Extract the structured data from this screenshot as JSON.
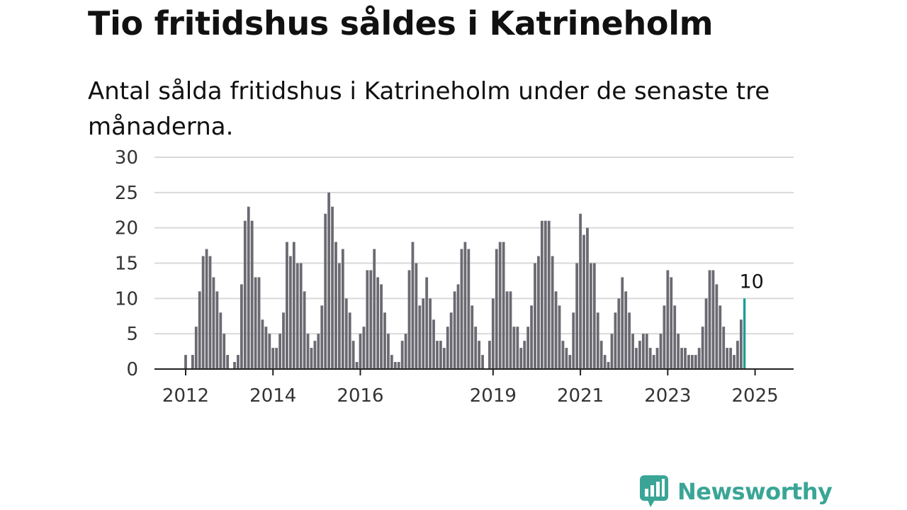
{
  "title": "Tio fritidshus såldes i Katrineholm",
  "subtitle": "Antal sålda fritidshus i Katrineholm under de senaste tre månaderna.",
  "colors": {
    "bar": "#6b6a72",
    "highlight": "#1a9e96",
    "grid": "#d9d9d9",
    "axis": "#222222",
    "brand": "#3aa597"
  },
  "brand": {
    "name": "Newsworthy",
    "icon": "bar-chart-speech-bubble-icon"
  },
  "chart_data": {
    "type": "bar",
    "title": "Tio fritidshus såldes i Katrineholm",
    "xlabel": "",
    "ylabel": "",
    "ylim": [
      0,
      30
    ],
    "yticks": [
      0,
      5,
      10,
      15,
      20,
      25,
      30
    ],
    "xtick_labels": [
      "2012",
      "2014",
      "2016",
      "2019",
      "2021",
      "2023",
      "2025"
    ],
    "xtick_positions": [
      0,
      25,
      50,
      88,
      113,
      138,
      163
    ],
    "grid": true,
    "legend": "none",
    "series": [
      {
        "values": [
          2,
          0,
          2,
          6,
          11,
          16,
          17,
          16,
          13,
          11,
          8,
          5,
          2,
          0,
          1,
          2,
          12,
          21,
          23,
          21,
          13,
          13,
          7,
          6,
          5,
          3,
          3,
          5,
          8,
          18,
          16,
          18,
          15,
          15,
          11,
          5,
          3,
          4,
          5,
          9,
          22,
          25,
          23,
          18,
          15,
          17,
          10,
          8,
          4,
          1,
          5,
          6,
          14,
          14,
          17,
          13,
          12,
          8,
          5,
          2,
          1,
          1,
          4,
          5,
          14,
          18,
          15,
          9,
          10,
          13,
          10,
          7,
          4,
          4,
          3,
          6,
          8,
          11,
          12,
          17,
          18,
          17,
          9,
          6,
          4,
          2,
          0,
          4,
          10,
          17,
          18,
          18,
          11,
          11,
          6,
          6,
          3,
          4,
          6,
          9,
          15,
          16,
          21,
          21,
          21,
          16,
          11,
          9,
          4,
          3,
          2,
          8,
          15,
          22,
          19,
          20,
          15,
          15,
          8,
          4,
          2,
          1,
          5,
          8,
          10,
          13,
          11,
          8,
          5,
          3,
          4,
          5,
          5,
          3,
          2,
          3,
          5,
          9,
          14,
          13,
          9,
          5,
          3,
          3,
          2,
          2,
          2,
          3,
          6,
          10,
          14,
          14,
          12,
          9,
          6,
          3,
          3,
          2,
          4,
          7,
          10
        ]
      }
    ],
    "annotations": [
      {
        "label": "10",
        "index": 162,
        "value": 10
      }
    ]
  }
}
